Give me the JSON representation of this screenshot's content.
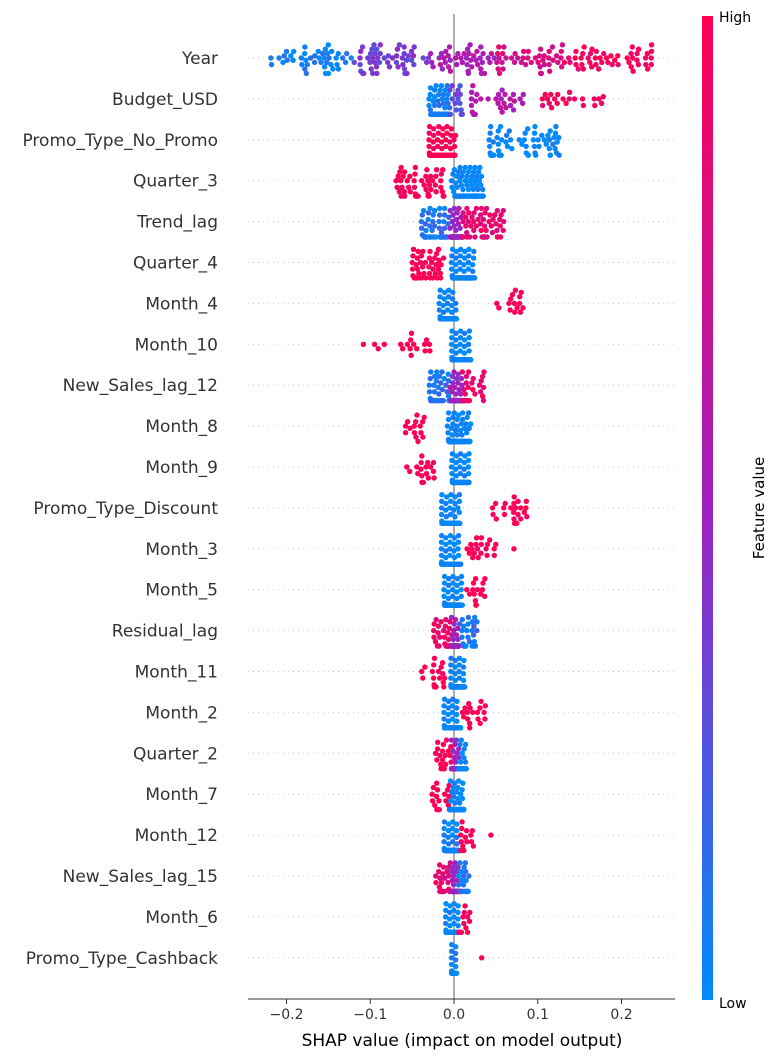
{
  "chart_data": {
    "type": "scatter",
    "subtype": "shap-beeswarm-summary",
    "xlabel": "SHAP value (impact on model output)",
    "xlim": [
      -0.245,
      0.265
    ],
    "xticks": [
      -0.2,
      -0.1,
      0.0,
      0.1,
      0.2
    ],
    "xtick_labels": [
      "−0.2",
      "−0.1",
      "0.0",
      "0.1",
      "0.2"
    ],
    "grid": false,
    "colorbar": {
      "title": "Feature value",
      "high_label": "High",
      "low_label": "Low",
      "low_color": "#008bfb",
      "mid_color": "#a020c0",
      "high_color": "#ff0052"
    },
    "features": [
      {
        "name": "Year",
        "clusters": [
          {
            "x0": -0.22,
            "x1": -0.12,
            "v": 0.05,
            "n": 45
          },
          {
            "x0": -0.12,
            "x1": -0.03,
            "v": 0.35,
            "n": 55
          },
          {
            "x0": -0.03,
            "x1": 0.05,
            "v": 0.55,
            "n": 45
          },
          {
            "x0": 0.05,
            "x1": 0.13,
            "v": 0.78,
            "n": 45
          },
          {
            "x0": 0.13,
            "x1": 0.24,
            "v": 0.95,
            "n": 50
          }
        ]
      },
      {
        "name": "Budget_USD",
        "clusters": [
          {
            "x0": -0.03,
            "x1": -0.005,
            "v": 0.05,
            "n": 110
          },
          {
            "x0": -0.005,
            "x1": 0.02,
            "v": 0.3,
            "n": 15
          },
          {
            "x0": 0.02,
            "x1": 0.09,
            "v": 0.6,
            "n": 30
          },
          {
            "x0": 0.1,
            "x1": 0.18,
            "v": 0.95,
            "n": 22
          }
        ]
      },
      {
        "name": "Promo_Type_No_Promo",
        "clusters": [
          {
            "x0": -0.03,
            "x1": 0.002,
            "v": 1.0,
            "n": 150
          },
          {
            "x0": 0.04,
            "x1": 0.13,
            "v": 0.0,
            "n": 60
          }
        ]
      },
      {
        "name": "Quarter_3",
        "clusters": [
          {
            "x0": -0.07,
            "x1": -0.012,
            "v": 1.0,
            "n": 55
          },
          {
            "x0": -0.003,
            "x1": 0.035,
            "v": 0.0,
            "n": 110
          }
        ]
      },
      {
        "name": "Trend_lag",
        "clusters": [
          {
            "x0": -0.04,
            "x1": -0.005,
            "v": 0.1,
            "n": 50
          },
          {
            "x0": -0.005,
            "x1": 0.01,
            "v": 0.5,
            "n": 60
          },
          {
            "x0": 0.01,
            "x1": 0.06,
            "v": 0.85,
            "n": 55
          }
        ]
      },
      {
        "name": "Quarter_4",
        "clusters": [
          {
            "x0": -0.05,
            "x1": -0.012,
            "v": 1.0,
            "n": 45
          },
          {
            "x0": -0.003,
            "x1": 0.025,
            "v": 0.0,
            "n": 110
          }
        ]
      },
      {
        "name": "Month_4",
        "clusters": [
          {
            "x0": -0.018,
            "x1": 0.003,
            "v": 0.0,
            "n": 140
          },
          {
            "x0": 0.05,
            "x1": 0.085,
            "v": 1.0,
            "n": 15
          }
        ]
      },
      {
        "name": "Month_10",
        "clusters": [
          {
            "x0": -0.11,
            "x1": -0.08,
            "v": 1.0,
            "n": 4
          },
          {
            "x0": -0.065,
            "x1": -0.028,
            "v": 1.0,
            "n": 14
          },
          {
            "x0": -0.003,
            "x1": 0.02,
            "v": 0.0,
            "n": 130
          }
        ]
      },
      {
        "name": "New_Sales_lag_12",
        "clusters": [
          {
            "x0": -0.03,
            "x1": -0.005,
            "v": 0.1,
            "n": 40
          },
          {
            "x0": -0.005,
            "x1": 0.01,
            "v": 0.5,
            "n": 60
          },
          {
            "x0": 0.01,
            "x1": 0.038,
            "v": 0.9,
            "n": 30
          }
        ]
      },
      {
        "name": "Month_8",
        "clusters": [
          {
            "x0": -0.06,
            "x1": -0.035,
            "v": 1.0,
            "n": 15
          },
          {
            "x0": -0.008,
            "x1": 0.02,
            "v": 0.0,
            "n": 130
          }
        ]
      },
      {
        "name": "Month_9",
        "clusters": [
          {
            "x0": -0.06,
            "x1": -0.022,
            "v": 1.0,
            "n": 20
          },
          {
            "x0": -0.003,
            "x1": 0.018,
            "v": 0.0,
            "n": 130
          }
        ]
      },
      {
        "name": "Promo_Type_Discount",
        "clusters": [
          {
            "x0": -0.015,
            "x1": 0.007,
            "v": 0.0,
            "n": 130
          },
          {
            "x0": 0.045,
            "x1": 0.09,
            "v": 1.0,
            "n": 25
          }
        ]
      },
      {
        "name": "Month_3",
        "clusters": [
          {
            "x0": -0.015,
            "x1": 0.008,
            "v": 0.0,
            "n": 130
          },
          {
            "x0": 0.015,
            "x1": 0.05,
            "v": 1.0,
            "n": 20
          },
          {
            "x0": 0.07,
            "x1": 0.074,
            "v": 1.0,
            "n": 1
          }
        ]
      },
      {
        "name": "Month_5",
        "clusters": [
          {
            "x0": -0.012,
            "x1": 0.01,
            "v": 0.0,
            "n": 130
          },
          {
            "x0": 0.013,
            "x1": 0.038,
            "v": 1.0,
            "n": 15
          }
        ]
      },
      {
        "name": "Residual_lag",
        "clusters": [
          {
            "x0": -0.025,
            "x1": -0.003,
            "v": 0.9,
            "n": 35
          },
          {
            "x0": -0.003,
            "x1": 0.006,
            "v": 0.5,
            "n": 60
          },
          {
            "x0": 0.005,
            "x1": 0.028,
            "v": 0.1,
            "n": 35
          }
        ]
      },
      {
        "name": "Month_11",
        "clusters": [
          {
            "x0": -0.04,
            "x1": -0.01,
            "v": 1.0,
            "n": 20
          },
          {
            "x0": -0.004,
            "x1": 0.013,
            "v": 0.0,
            "n": 130
          }
        ]
      },
      {
        "name": "Month_2",
        "clusters": [
          {
            "x0": -0.012,
            "x1": 0.008,
            "v": 0.0,
            "n": 130
          },
          {
            "x0": 0.008,
            "x1": 0.038,
            "v": 1.0,
            "n": 18
          }
        ]
      },
      {
        "name": "Quarter_2",
        "clusters": [
          {
            "x0": -0.022,
            "x1": -0.003,
            "v": 1.0,
            "n": 20
          },
          {
            "x0": -0.003,
            "x1": 0.006,
            "v": 0.5,
            "n": 70
          },
          {
            "x0": 0.005,
            "x1": 0.015,
            "v": 0.0,
            "n": 40
          }
        ]
      },
      {
        "name": "Month_7",
        "clusters": [
          {
            "x0": -0.03,
            "x1": -0.003,
            "v": 1.0,
            "n": 20
          },
          {
            "x0": -0.005,
            "x1": 0.012,
            "v": 0.0,
            "n": 130
          }
        ]
      },
      {
        "name": "Month_12",
        "clusters": [
          {
            "x0": -0.012,
            "x1": 0.006,
            "v": 0.0,
            "n": 130
          },
          {
            "x0": 0.006,
            "x1": 0.024,
            "v": 1.0,
            "n": 15
          },
          {
            "x0": 0.042,
            "x1": 0.045,
            "v": 1.0,
            "n": 1
          }
        ]
      },
      {
        "name": "New_Sales_lag_15",
        "clusters": [
          {
            "x0": -0.022,
            "x1": -0.003,
            "v": 0.85,
            "n": 30
          },
          {
            "x0": -0.003,
            "x1": 0.007,
            "v": 0.5,
            "n": 60
          },
          {
            "x0": 0.005,
            "x1": 0.018,
            "v": 0.1,
            "n": 30
          }
        ]
      },
      {
        "name": "Month_6",
        "clusters": [
          {
            "x0": -0.01,
            "x1": 0.006,
            "v": 0.0,
            "n": 130
          },
          {
            "x0": 0.005,
            "x1": 0.024,
            "v": 1.0,
            "n": 15
          }
        ]
      },
      {
        "name": "Promo_Type_Cashback",
        "clusters": [
          {
            "x0": -0.003,
            "x1": 0.003,
            "v": 0.0,
            "n": 140
          },
          {
            "x0": 0.032,
            "x1": 0.035,
            "v": 1.0,
            "n": 1
          }
        ]
      }
    ]
  }
}
